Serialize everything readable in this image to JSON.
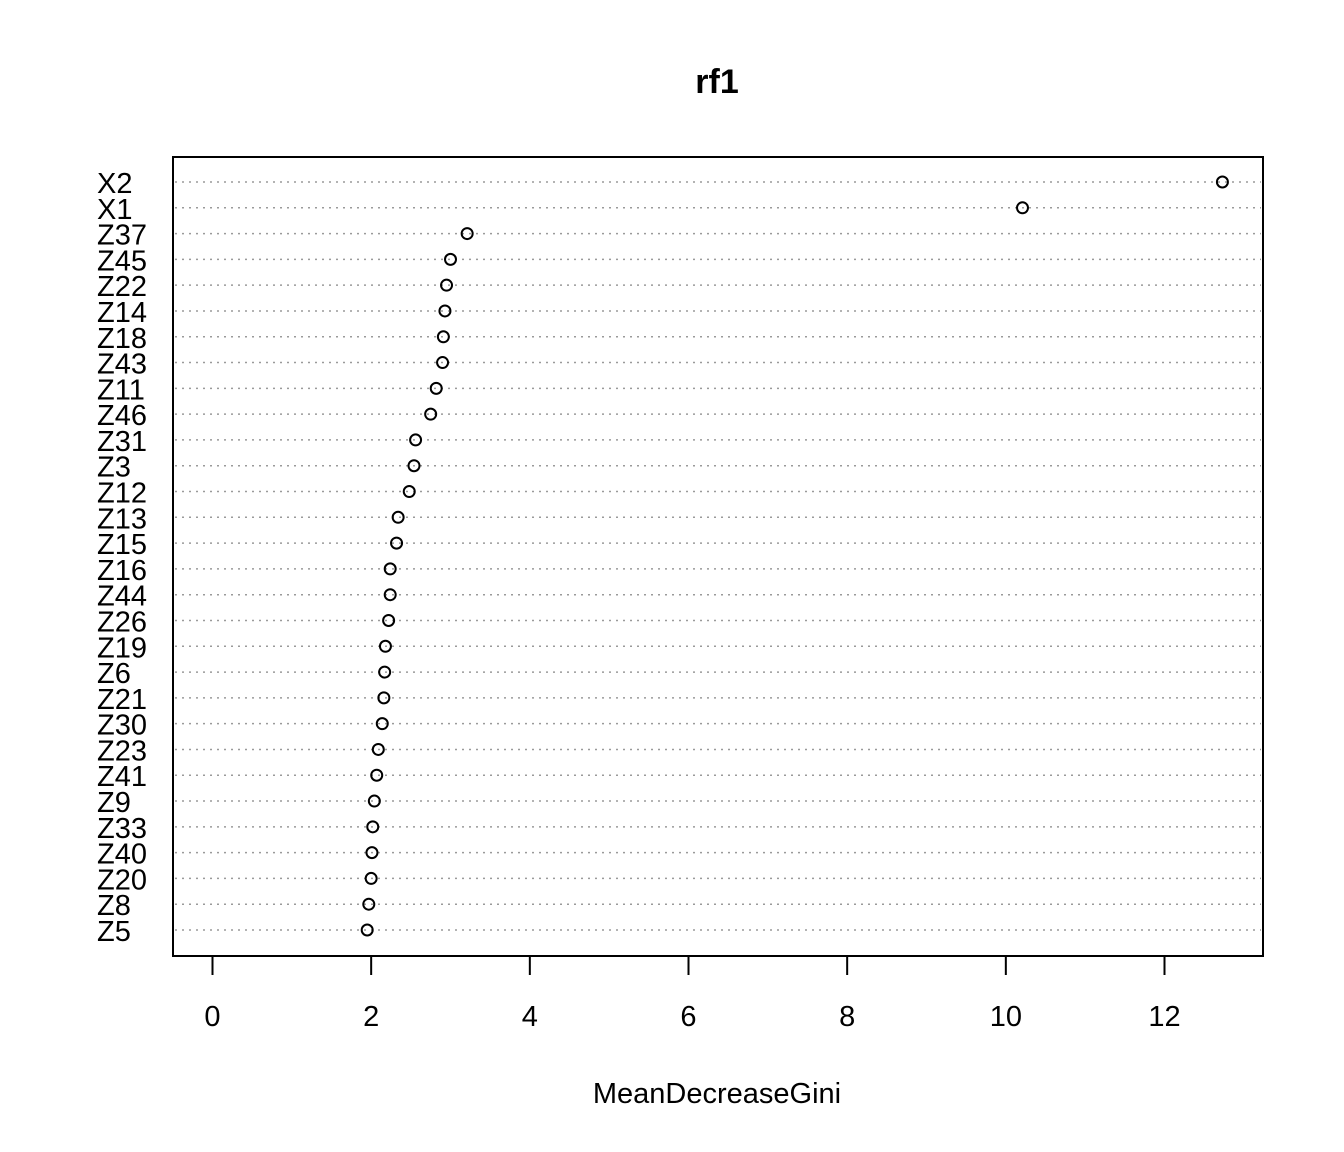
{
  "chart_data": {
    "type": "scatter",
    "style": "dotchart",
    "title": "rf1",
    "xlabel": "MeanDecreaseGini",
    "ylabel": "",
    "xlim": [
      -0.5,
      13.2
    ],
    "xticks": [
      0,
      2,
      4,
      6,
      8,
      10,
      12
    ],
    "xtick_labels": [
      "0",
      "2",
      "4",
      "6",
      "8",
      "10",
      "12"
    ],
    "grid": "dotted horizontal lines per category",
    "legend": "none",
    "categories": [
      "X2",
      "X1",
      "Z37",
      "Z45",
      "Z22",
      "Z14",
      "Z18",
      "Z43",
      "Z11",
      "Z46",
      "Z31",
      "Z3",
      "Z12",
      "Z13",
      "Z15",
      "Z16",
      "Z44",
      "Z26",
      "Z19",
      "Z6",
      "Z21",
      "Z30",
      "Z23",
      "Z41",
      "Z9",
      "Z33",
      "Z40",
      "Z20",
      "Z8",
      "Z5"
    ],
    "values": [
      12.73,
      10.21,
      3.21,
      3.0,
      2.95,
      2.93,
      2.91,
      2.9,
      2.82,
      2.75,
      2.56,
      2.54,
      2.48,
      2.34,
      2.32,
      2.24,
      2.24,
      2.22,
      2.18,
      2.17,
      2.16,
      2.14,
      2.09,
      2.07,
      2.04,
      2.02,
      2.01,
      2.0,
      1.97,
      1.95
    ]
  }
}
